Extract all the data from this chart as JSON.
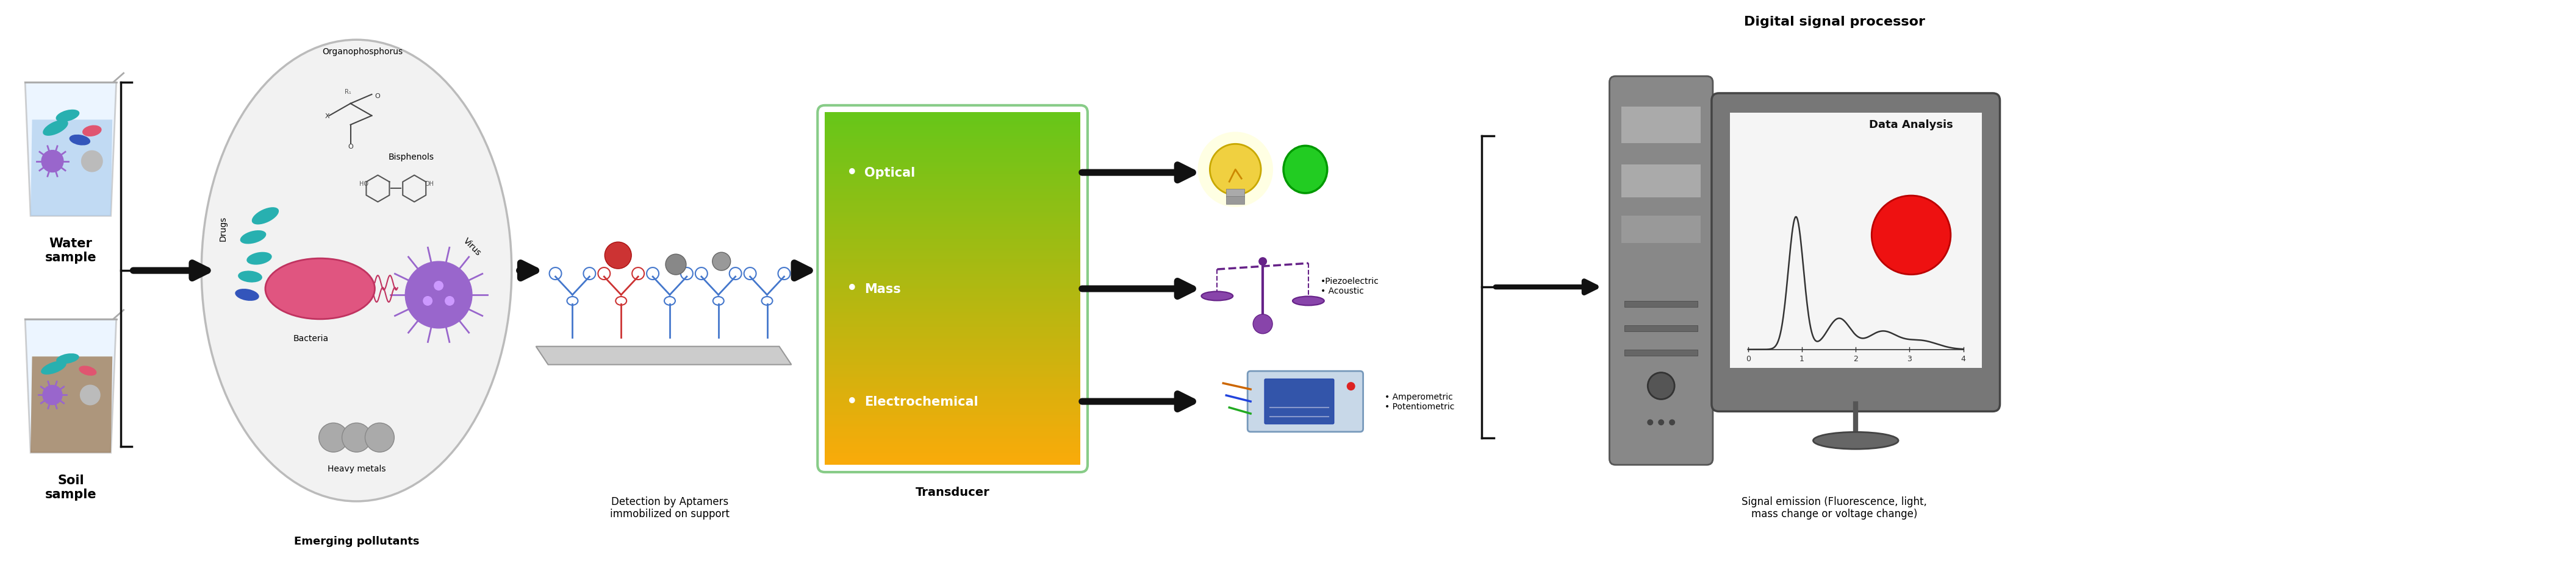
{
  "fig_width": 42.23,
  "fig_height": 9.45,
  "bg_color": "#ffffff",
  "title_digital": "Digital signal processor",
  "title_data": "Data Analysis",
  "label_water": "Water\nsample",
  "label_soil": "Soil\nsample",
  "label_emerging": "Emerging pollutants",
  "label_detection": "Detection by Aptamers\nimmobilized on support",
  "label_transducer": "Transducer",
  "label_optical": "Optical",
  "label_mass": "Mass",
  "label_electrochemical": "Electrochemical",
  "label_piezo": "•Piezoelectric\n• Acoustic",
  "label_ampero": "• Amperometric\n• Potentiometric",
  "label_signal": "Signal emission (Fluorescence, light,\nmass change or voltage change)",
  "label_organophosphorus": "Organophosphorus",
  "label_bisphenols": "Bisphenols",
  "label_bacteria": "Bacteria",
  "label_virus": "Virus",
  "label_drugs": "Drugs",
  "label_heavy": "Heavy metals",
  "arrow_color": "#111111"
}
